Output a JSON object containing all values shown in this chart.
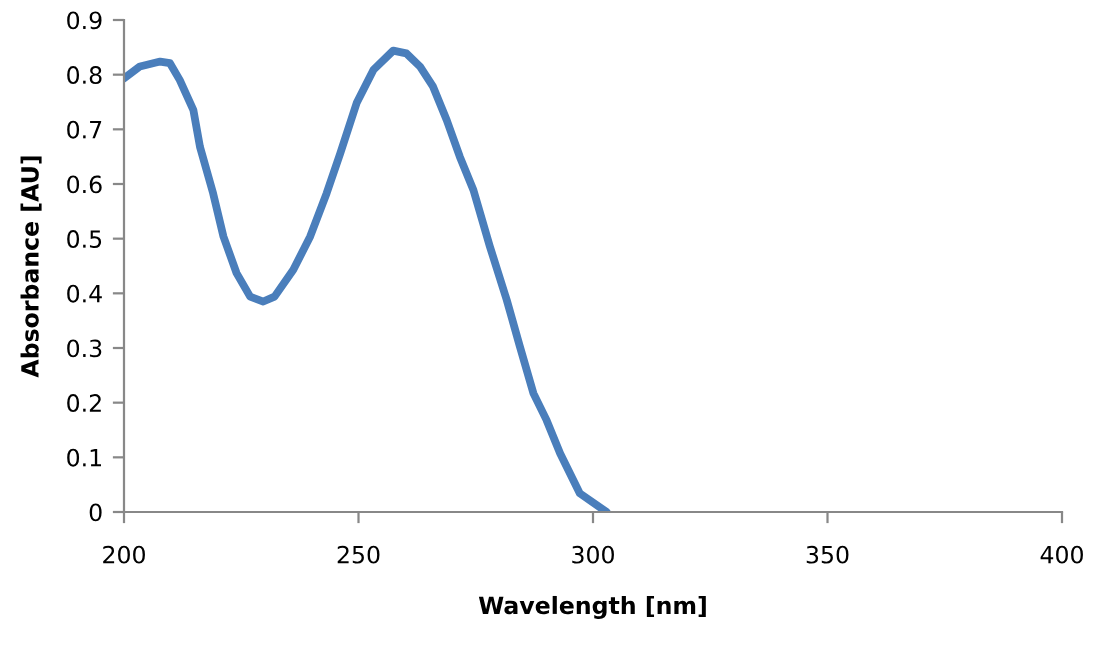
{
  "chart_data": {
    "type": "line",
    "xlabel": "Wavelength [nm]",
    "ylabel": "Absorbance [AU]",
    "xlim": [
      200,
      400
    ],
    "xticks": [
      200,
      250,
      300,
      350,
      400
    ],
    "ylim": [
      0,
      0.9
    ],
    "yticks": [
      0,
      0.1,
      0.2,
      0.3,
      0.4,
      0.5,
      0.6,
      0.7,
      0.8,
      0.9
    ],
    "grid": false,
    "legend": false,
    "series": [
      {
        "color": "#4a7ebb",
        "x": [
          200,
          203.4,
          207.7,
          209.8,
          211.9,
          214.8,
          216.2,
          219.0,
          221.2,
          224.0,
          226.9,
          229.7,
          232.1,
          236.1,
          239.7,
          243.2,
          246.1,
          249.6,
          253.2,
          257.4,
          260.2,
          263.1,
          265.9,
          268.8,
          271.6,
          274.5,
          278.0,
          281.6,
          284.4,
          287.3,
          290.1,
          293.0,
          297.2,
          302.9
        ],
        "values": [
          0.793,
          0.815,
          0.824,
          0.821,
          0.79,
          0.735,
          0.668,
          0.583,
          0.504,
          0.437,
          0.394,
          0.385,
          0.394,
          0.443,
          0.504,
          0.583,
          0.656,
          0.748,
          0.809,
          0.844,
          0.839,
          0.815,
          0.778,
          0.717,
          0.65,
          0.589,
          0.486,
          0.388,
          0.303,
          0.217,
          0.168,
          0.107,
          0.034,
          0
        ]
      }
    ]
  }
}
